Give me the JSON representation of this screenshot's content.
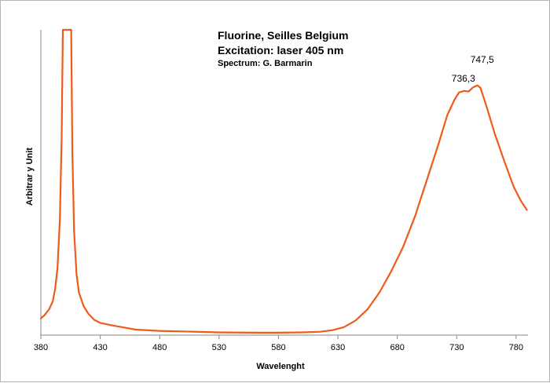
{
  "chart_data": {
    "type": "line",
    "title": "Fluorine, Seilles Belgium",
    "subtitle": "Excitation:  laser 405 nm",
    "credit": "Spectrum: G. Barmarin",
    "xlabel": "Wavelenght",
    "ylabel": "Arbitrar y Unit",
    "xlim": [
      380,
      790
    ],
    "ylim": [
      0,
      100
    ],
    "x_ticks": [
      "380",
      "430",
      "480",
      "530",
      "580",
      "630",
      "680",
      "730",
      "780"
    ],
    "grid": false,
    "line_color": "#f05a1a",
    "series": [
      {
        "values": [
          [
            380,
            5.5
          ],
          [
            383,
            6.5
          ],
          [
            387,
            8.5
          ],
          [
            390,
            11
          ],
          [
            392,
            15
          ],
          [
            394,
            22
          ],
          [
            396,
            38
          ],
          [
            397.5,
            65
          ],
          [
            398.5,
            100
          ],
          [
            399.5,
            100
          ],
          [
            404.5,
            100
          ],
          [
            405.5,
            100
          ],
          [
            406.5,
            60
          ],
          [
            408,
            34
          ],
          [
            410,
            20
          ],
          [
            412,
            14
          ],
          [
            416,
            9.5
          ],
          [
            420,
            7
          ],
          [
            425,
            5
          ],
          [
            430,
            4
          ],
          [
            440,
            3.2
          ],
          [
            450,
            2.5
          ],
          [
            460,
            1.8
          ],
          [
            480,
            1.4
          ],
          [
            500,
            1.2
          ],
          [
            530,
            0.9
          ],
          [
            560,
            0.8
          ],
          [
            580,
            0.8
          ],
          [
            600,
            0.9
          ],
          [
            615,
            1.1
          ],
          [
            625,
            1.6
          ],
          [
            635,
            2.6
          ],
          [
            645,
            4.8
          ],
          [
            655,
            8.5
          ],
          [
            665,
            14
          ],
          [
            675,
            21
          ],
          [
            685,
            29
          ],
          [
            695,
            39
          ],
          [
            705,
            51
          ],
          [
            715,
            63
          ],
          [
            722,
            72
          ],
          [
            728,
            77
          ],
          [
            732,
            79.5
          ],
          [
            736.3,
            80
          ],
          [
            740,
            79.8
          ],
          [
            744,
            81.2
          ],
          [
            747.5,
            81.8
          ],
          [
            750,
            81
          ],
          [
            755,
            75
          ],
          [
            762,
            66
          ],
          [
            770,
            57
          ],
          [
            778,
            48.5
          ],
          [
            784,
            44
          ],
          [
            789,
            41
          ]
        ]
      }
    ],
    "annotations": [
      {
        "text": "736,3",
        "x": 736.3,
        "y": 80
      },
      {
        "text": "747,5",
        "x": 747.5,
        "y": 81.8
      }
    ]
  }
}
